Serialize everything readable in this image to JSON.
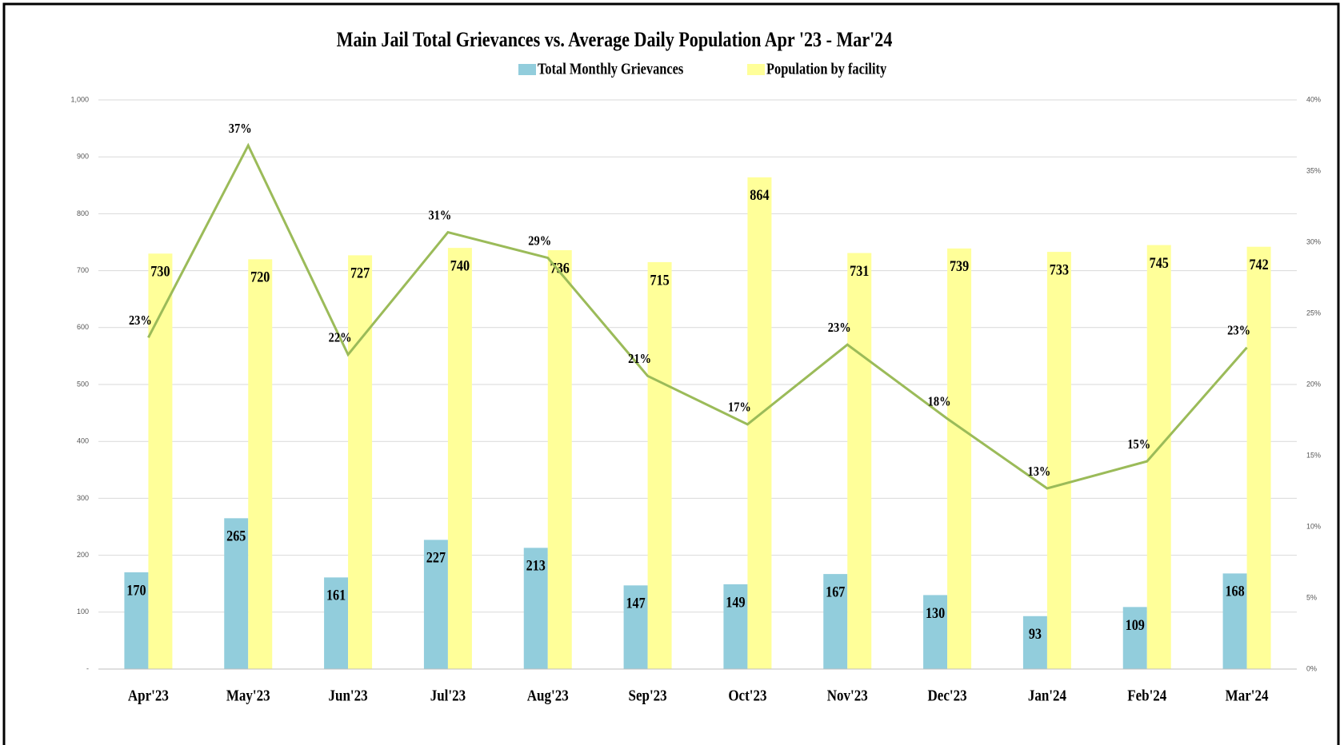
{
  "chart_data": {
    "type": "bar",
    "title": "Main Jail Total Grievances vs. Average Daily Population  Apr '23 - Mar'24",
    "categories": [
      "Apr'23",
      "May'23",
      "Jun'23",
      "Jul'23",
      "Aug'23",
      "Sep'23",
      "Oct'23",
      "Nov'23",
      "Dec'23",
      "Jan'24",
      "Feb'24",
      "Mar'24"
    ],
    "series": [
      {
        "name": "Total Monthly Grievances",
        "color": "#92cddc",
        "values": [
          170,
          265,
          161,
          227,
          213,
          147,
          149,
          167,
          130,
          93,
          109,
          168
        ]
      },
      {
        "name": "Population by facility",
        "color": "#ffff99",
        "values": [
          730,
          720,
          727,
          740,
          736,
          715,
          864,
          731,
          739,
          733,
          745,
          742
        ]
      },
      {
        "type": "line",
        "axis": "y2",
        "color": "#9bbb59",
        "values": [
          23.3,
          36.8,
          22.1,
          30.7,
          28.9,
          20.6,
          17.2,
          22.8,
          17.6,
          12.7,
          14.6,
          22.6
        ],
        "value_labels": [
          "23%",
          "37%",
          "22%",
          "31%",
          "29%",
          "21%",
          "17%",
          "23%",
          "18%",
          "13%",
          "15%",
          "23%"
        ]
      }
    ],
    "ylim": [
      0,
      1000
    ],
    "yticks": [
      {
        "value": 0,
        "label": "-"
      },
      100,
      200,
      300,
      400,
      500,
      600,
      700,
      800,
      900,
      {
        "value": 1000,
        "label": "1,000"
      }
    ],
    "y2lim": [
      0,
      40
    ],
    "y2ticks": [
      {
        "value": 0,
        "label": "0%"
      },
      {
        "value": 5,
        "label": "5%"
      },
      {
        "value": 10,
        "label": "10%"
      },
      {
        "value": 15,
        "label": "15%"
      },
      {
        "value": 20,
        "label": "20%"
      },
      {
        "value": 25,
        "label": "25%"
      },
      {
        "value": 30,
        "label": "30%"
      },
      {
        "value": 35,
        "label": "35%"
      },
      {
        "value": 40,
        "label": "40%"
      }
    ],
    "grid": true,
    "legend": "top"
  }
}
